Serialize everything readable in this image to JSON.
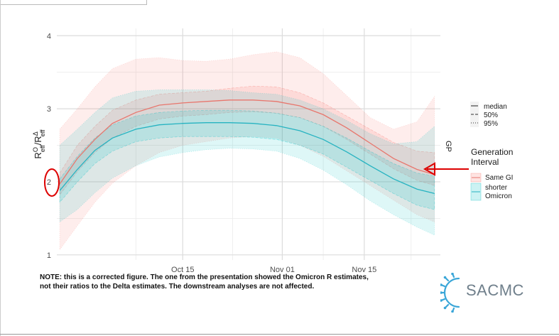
{
  "chart_data": {
    "type": "line",
    "title": "",
    "xlabel": "",
    "ylabel_main": "R",
    "ylabel_num_sup": "O",
    "ylabel_num_sub": "eff",
    "ylabel_slash": "/",
    "ylabel_den": "R",
    "ylabel_den_sup": "Δ",
    "ylabel_den_sub": "eff",
    "x_ticks": [
      {
        "label": "Oct 15",
        "day": 14
      },
      {
        "label": "Nov 01",
        "day": 31
      },
      {
        "label": "Nov 15",
        "day": 45
      }
    ],
    "x_minor_days": [
      6,
      22.5,
      38,
      53
    ],
    "xlim_days": [
      -7.5,
      58
    ],
    "y_ticks": [
      1,
      2,
      3,
      4
    ],
    "ylim": [
      0.93,
      4.1
    ],
    "facet_label": "GP",
    "x_days": [
      -7,
      -4,
      -1,
      2,
      6,
      10,
      14,
      18,
      22,
      26,
      30,
      34,
      38,
      42,
      46,
      50,
      54,
      57
    ],
    "series": [
      {
        "name": "Same GI",
        "color": "#e8766d",
        "fill": "#f8766d",
        "median": [
          1.97,
          2.32,
          2.58,
          2.8,
          2.95,
          3.05,
          3.08,
          3.1,
          3.12,
          3.12,
          3.1,
          3.04,
          2.92,
          2.74,
          2.53,
          2.32,
          2.17,
          2.1
        ],
        "p50_low": [
          1.82,
          2.14,
          2.4,
          2.6,
          2.76,
          2.86,
          2.9,
          2.92,
          2.95,
          2.96,
          2.94,
          2.88,
          2.76,
          2.58,
          2.38,
          2.18,
          2.02,
          1.95
        ],
        "p50_high": [
          2.12,
          2.5,
          2.76,
          2.98,
          3.12,
          3.2,
          3.22,
          3.24,
          3.28,
          3.31,
          3.3,
          3.22,
          3.08,
          2.9,
          2.72,
          2.54,
          2.42,
          2.4
        ],
        "p95_low": [
          1.07,
          1.4,
          1.72,
          1.98,
          2.22,
          2.4,
          2.5,
          2.55,
          2.6,
          2.62,
          2.6,
          2.5,
          2.35,
          2.15,
          1.95,
          1.75,
          1.55,
          1.45
        ],
        "p95_high": [
          2.72,
          3.0,
          3.3,
          3.55,
          3.68,
          3.7,
          3.66,
          3.65,
          3.68,
          3.74,
          3.78,
          3.7,
          3.48,
          3.18,
          2.88,
          2.72,
          2.82,
          3.17
        ]
      },
      {
        "name": "shorter\nOmicron",
        "color": "#26b3c1",
        "fill": "#00bfc4",
        "median": [
          1.88,
          2.17,
          2.43,
          2.6,
          2.72,
          2.78,
          2.8,
          2.81,
          2.81,
          2.8,
          2.77,
          2.7,
          2.58,
          2.41,
          2.22,
          2.04,
          1.9,
          1.84
        ],
        "p50_low": [
          1.72,
          2.0,
          2.25,
          2.42,
          2.55,
          2.6,
          2.62,
          2.62,
          2.62,
          2.61,
          2.58,
          2.5,
          2.38,
          2.2,
          2.02,
          1.84,
          1.68,
          1.62
        ],
        "p50_high": [
          2.04,
          2.35,
          2.6,
          2.78,
          2.9,
          2.95,
          2.97,
          2.98,
          2.98,
          2.97,
          2.94,
          2.88,
          2.76,
          2.6,
          2.42,
          2.25,
          2.12,
          2.08
        ],
        "p95_low": [
          1.45,
          1.62,
          1.85,
          2.05,
          2.22,
          2.34,
          2.4,
          2.44,
          2.46,
          2.45,
          2.42,
          2.32,
          2.16,
          1.96,
          1.74,
          1.55,
          1.38,
          1.27
        ],
        "p95_high": [
          2.5,
          2.72,
          2.95,
          3.15,
          3.24,
          3.26,
          3.26,
          3.26,
          3.25,
          3.22,
          3.2,
          3.12,
          3.0,
          2.84,
          2.66,
          2.52,
          2.55,
          2.76
        ]
      }
    ],
    "legend_lines": {
      "items": [
        {
          "label": "median",
          "dash": ""
        },
        {
          "label": "50%",
          "dash": "4,2"
        },
        {
          "label": "95%",
          "dash": "1,2"
        }
      ]
    },
    "legend_fill": {
      "title": "Generation\nInterval",
      "items": [
        "Same GI",
        "shorter\nOmicron"
      ]
    }
  },
  "note": "NOTE: this is a corrected figure. The one from the presentation showed the Omicron R estimates, not their ratios to the Delta estimates. The downstream analyses are not affected.",
  "logo": {
    "text": "SACMC"
  },
  "annotation_colors": {
    "highlight": "#dd0000"
  }
}
